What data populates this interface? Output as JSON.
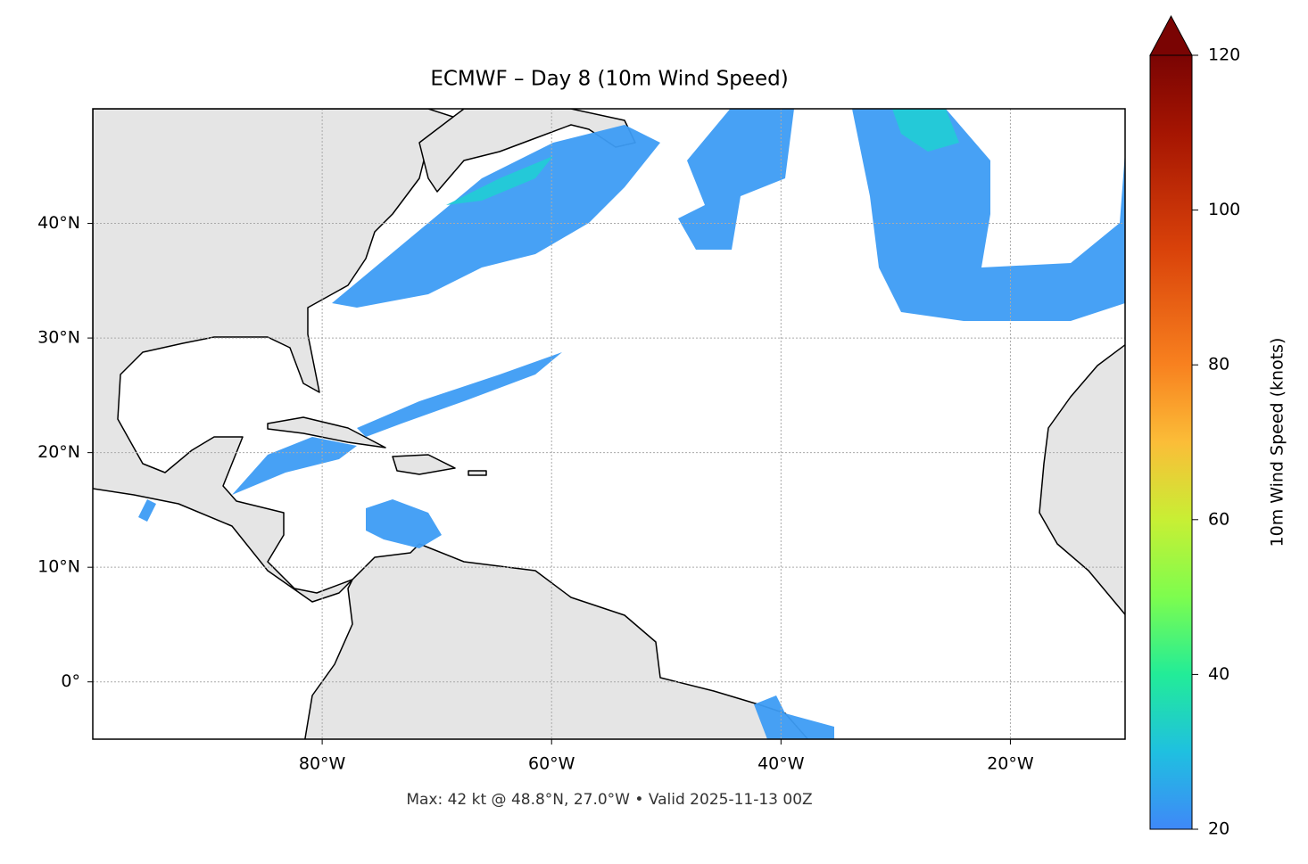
{
  "chart_data": {
    "type": "map",
    "title": "ECMWF – Day 8 (10m Wind Speed)",
    "footer": "Max: 42 kt @ 48.8°N, 27.0°W • Valid 2025-11-13 00Z",
    "xlim": [
      -100,
      -10
    ],
    "ylim": [
      -5,
      50
    ],
    "xticks": [
      {
        "value": -80,
        "label": "80°W"
      },
      {
        "value": -60,
        "label": "60°W"
      },
      {
        "value": -40,
        "label": "40°W"
      },
      {
        "value": -20,
        "label": "20°W"
      }
    ],
    "yticks": [
      {
        "value": 0,
        "label": "0°"
      },
      {
        "value": 10,
        "label": "10°N"
      },
      {
        "value": 20,
        "label": "20°N"
      },
      {
        "value": 30,
        "label": "30°N"
      },
      {
        "value": 40,
        "label": "40°N"
      }
    ],
    "grid": true,
    "colorbar": {
      "label": "10m Wind Speed (knots)",
      "lim": [
        20,
        120
      ],
      "ticks": [
        20,
        40,
        60,
        80,
        100,
        120
      ]
    }
  }
}
